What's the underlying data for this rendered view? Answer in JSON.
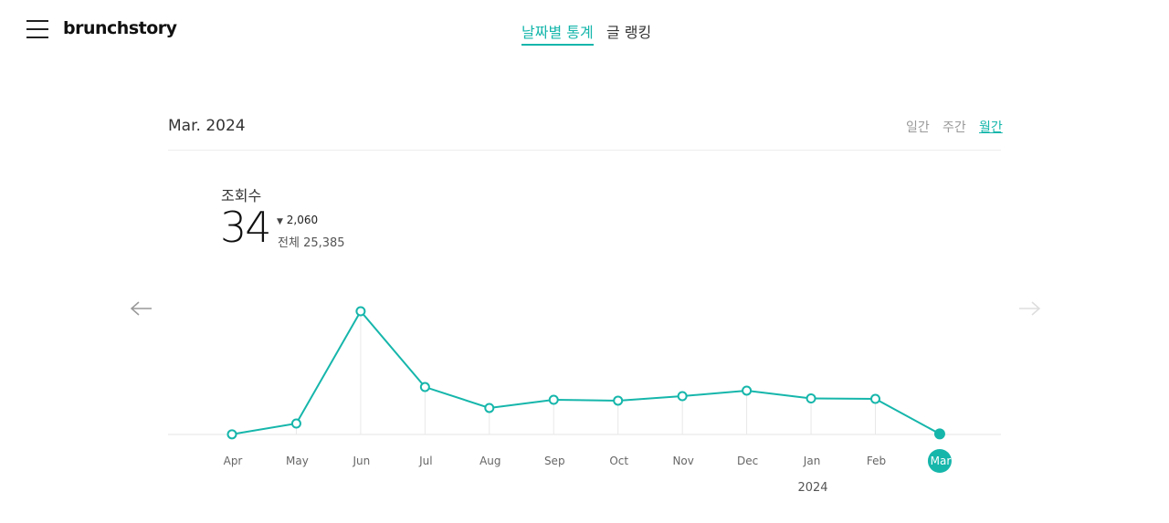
{
  "header": {
    "logo": "brunchstory",
    "nav": [
      "날짜별 통계",
      "글 랭킹"
    ]
  },
  "period": {
    "title": "Mar. 2024",
    "tabs": [
      "일간",
      "주간",
      "월간"
    ]
  },
  "stats": {
    "label": "조회수",
    "value": 34,
    "change": "2,060",
    "total_label": "전체",
    "total": "25,385"
  },
  "chart_data": {
    "type": "line",
    "color": "#16b6ab",
    "categories": [
      "Apr",
      "May",
      "Jun",
      "Jul",
      "Aug",
      "Sep",
      "Oct",
      "Nov",
      "Dec",
      "Jan",
      "Feb",
      "Mar"
    ],
    "values": [
      10,
      645,
      7250,
      2790,
      1560,
      2040,
      1990,
      2255,
      2580,
      2120,
      2094,
      34
    ],
    "year_label": "2024"
  }
}
